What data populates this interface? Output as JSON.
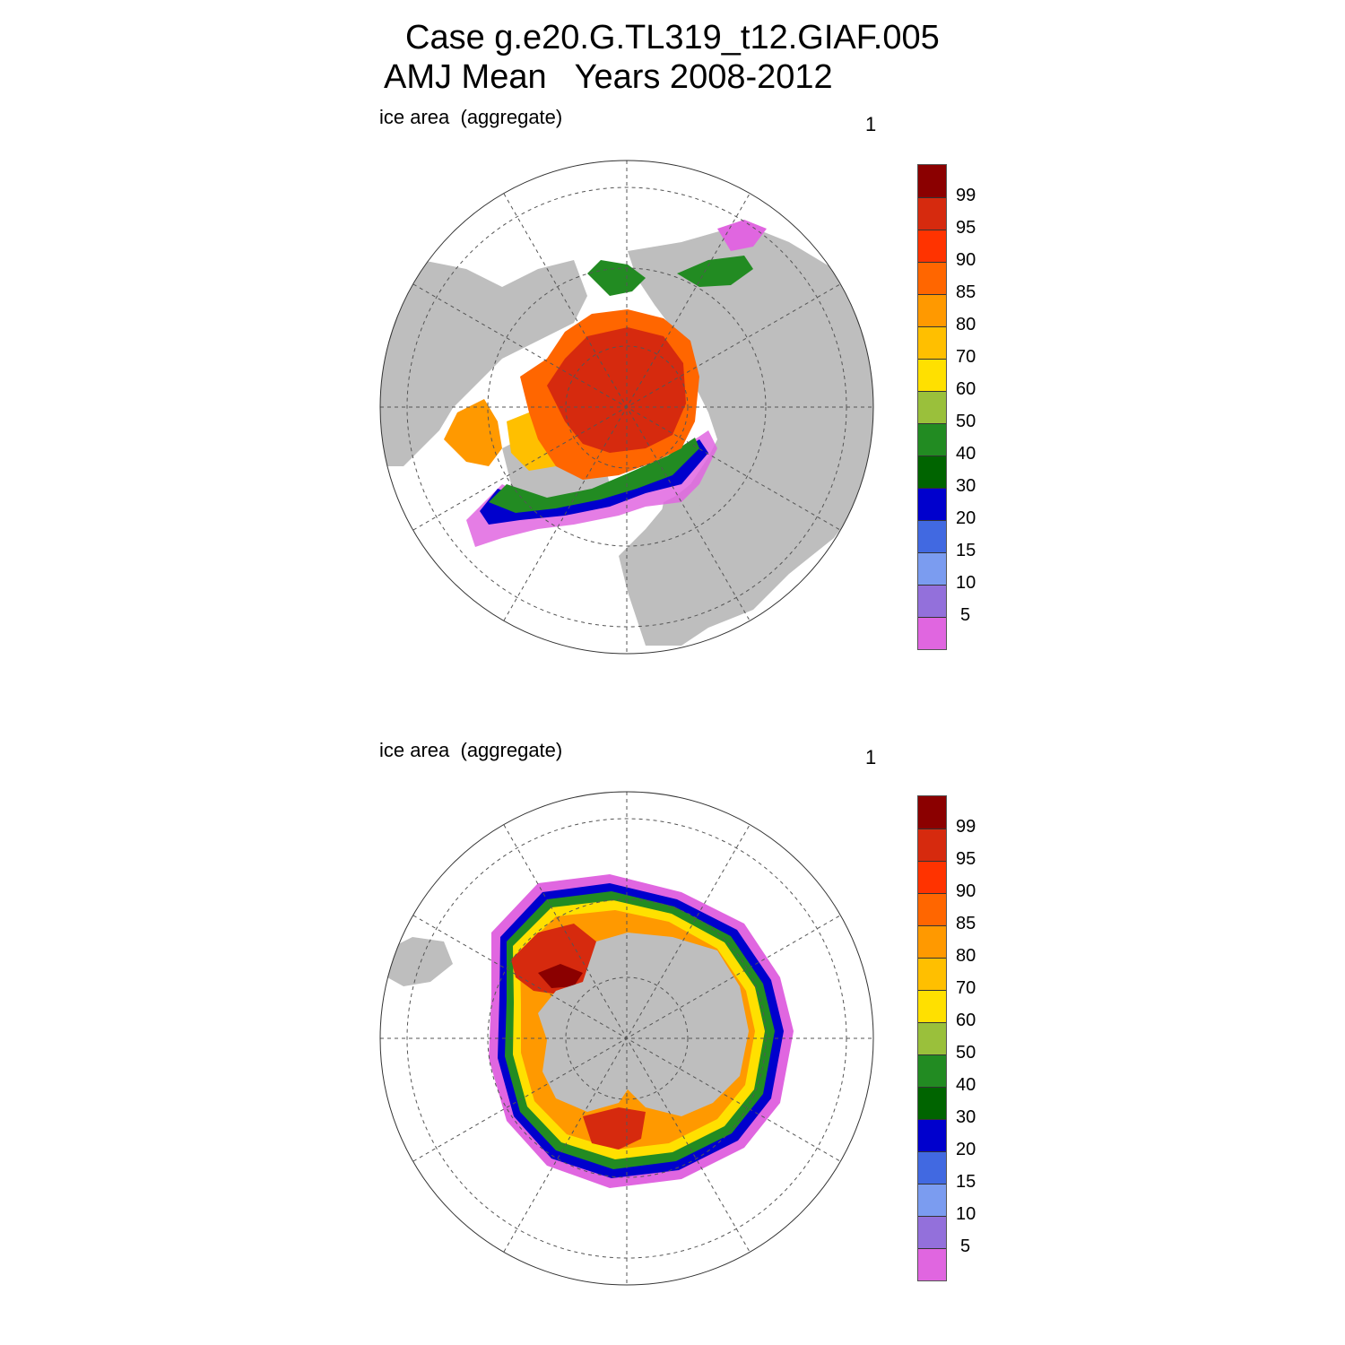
{
  "title": {
    "line1": "Case g.e20.G.TL319_t12.GIAF.005",
    "line2": "AMJ Mean   Years 2008-2012"
  },
  "panels": [
    {
      "label": "ice area  (aggregate)",
      "number": "1",
      "hemisphere": "north"
    },
    {
      "label": "ice area  (aggregate)",
      "number": "1",
      "hemisphere": "south"
    }
  ],
  "colorbar": {
    "labels": [
      "99",
      "95",
      "90",
      "85",
      "80",
      "70",
      "60",
      "50",
      "40",
      "30",
      "20",
      "15",
      "10",
      "5"
    ],
    "colors": [
      "#8b0000",
      "#d62a0e",
      "#ff3300",
      "#ff6600",
      "#ff9900",
      "#ffbf00",
      "#ffe000",
      "#9ac03b",
      "#228b22",
      "#006400",
      "#0000cd",
      "#4169e1",
      "#7b9cf0",
      "#9370db",
      "#e066e0"
    ]
  },
  "map_colors": {
    "land": "#bebebe",
    "ocean": "#ffffff",
    "contour": "#000000"
  }
}
